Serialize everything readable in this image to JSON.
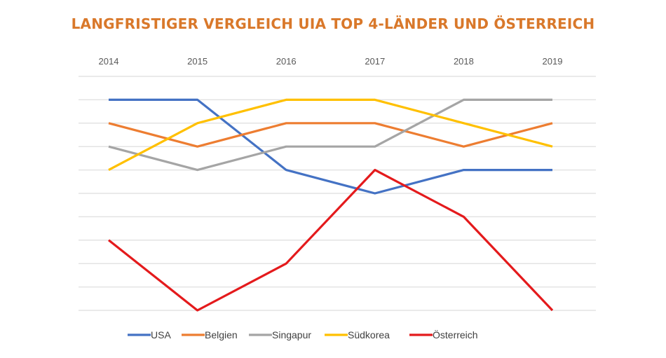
{
  "chart_data": {
    "type": "line",
    "title": "LANGFRISTIGER VERGLEICH UIA TOP 4-LÄNDER UND ÖSTERREICH",
    "xlabel": "",
    "ylabel": "",
    "categories": [
      "2014",
      "2015",
      "2016",
      "2017",
      "2018",
      "2019"
    ],
    "ylim": [
      0,
      10
    ],
    "y_inverted": true,
    "y_tick_labels_visible": false,
    "grid": true,
    "x_axis_position": "top",
    "legend_position": "bottom",
    "series": [
      {
        "name": "USA",
        "color": "#4472c4",
        "values": [
          1,
          1,
          4,
          5,
          4,
          4
        ]
      },
      {
        "name": "Belgien",
        "color": "#ed7d31",
        "values": [
          2,
          3,
          2,
          2,
          3,
          2
        ]
      },
      {
        "name": "Singapur",
        "color": "#a5a5a5",
        "values": [
          3,
          4,
          3,
          3,
          1,
          1
        ]
      },
      {
        "name": "Südkorea",
        "color": "#ffc000",
        "values": [
          4,
          2,
          1,
          1,
          2,
          3
        ]
      },
      {
        "name": "Österreich",
        "color": "#e41a1c",
        "values": [
          7,
          10,
          8,
          4,
          6,
          10
        ]
      }
    ]
  },
  "colors": {
    "title": "#d9782a",
    "grid": "#e3e3e3",
    "tick_text": "#595959"
  }
}
